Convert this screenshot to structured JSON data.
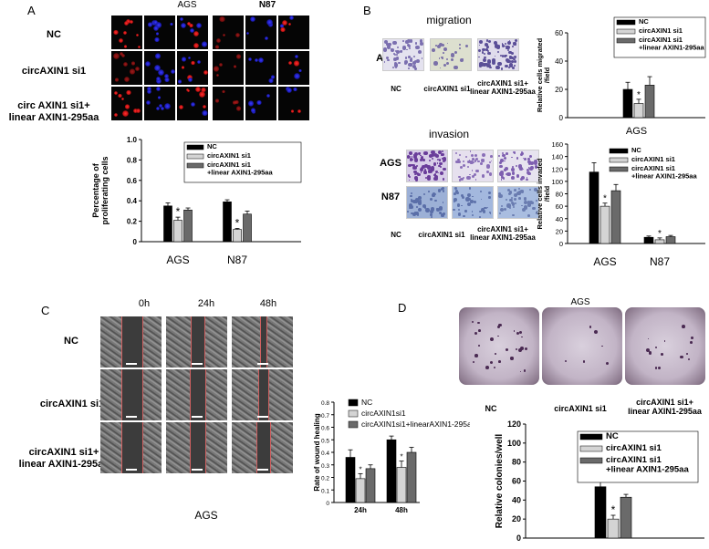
{
  "panelA": {
    "label": "A",
    "col_headers": [
      "AGS",
      "N87"
    ],
    "row_labels": [
      "NC",
      "circAXIN1 si1",
      "circ AXIN1 si1+\nlinear AXIN1-295aa"
    ]
  },
  "panelB": {
    "label": "B",
    "migration_title": "migration",
    "invasion_title": "invasion",
    "migration_rows": [
      "AGS"
    ],
    "invasion_rows": [
      "AGS",
      "N87"
    ],
    "col_labels": [
      "NC",
      "circAXIN1 si1",
      "circAXIN1 si1+\nlinear AXIN1-295aa"
    ]
  },
  "panelC": {
    "label": "C",
    "col_headers": [
      "0h",
      "24h",
      "48h"
    ],
    "row_labels": [
      "NC",
      "circAXIN1 si1",
      "circAXIN1 si1+\nlinear AXIN1-295aa"
    ],
    "footer": "AGS"
  },
  "panelD": {
    "label": "D",
    "header": "AGS",
    "col_labels": [
      "NC",
      "circAXIN1 si1",
      "circAXIN1 si1+\nlinear AXIN1-295aa"
    ]
  },
  "colors": {
    "NC": "#000000",
    "si1": "#d4d4d4",
    "rescue": "#6a6a6a"
  },
  "chart_data": [
    {
      "id": "prolif",
      "type": "bar",
      "ylabel": "Percentage of\nproliferating cells",
      "categories": [
        "AGS",
        "N87"
      ],
      "series": [
        {
          "name": "NC",
          "values": [
            0.35,
            0.39
          ],
          "err": [
            0.03,
            0.02
          ]
        },
        {
          "name": "circAXIN1 si1",
          "values": [
            0.21,
            0.12
          ],
          "err": [
            0.03,
            0.01
          ]
        },
        {
          "name": "circAXIN1 si1\n+linear AXIN1-295aa",
          "values": [
            0.31,
            0.27
          ],
          "err": [
            0.02,
            0.03
          ]
        }
      ],
      "ylim": [
        0,
        1.0
      ],
      "yticks": [
        "0",
        "0.2",
        "0.4",
        "0.6",
        "0.8",
        "1.0"
      ],
      "ytick_values": [
        0,
        0.2,
        0.4,
        0.6,
        0.8,
        1.0
      ],
      "sig": [
        "*",
        "*"
      ],
      "legend_position": "top-right"
    },
    {
      "id": "migr",
      "type": "bar",
      "ylabel": "Relative cells migrated\n/field",
      "xlabel": "AGS",
      "categories": [
        ""
      ],
      "series": [
        {
          "name": "NC",
          "values": [
            20
          ],
          "err": [
            5
          ]
        },
        {
          "name": "circAXIN1 si1",
          "values": [
            10
          ],
          "err": [
            3
          ]
        },
        {
          "name": "circAXIN1 si1\n+linear AXIN1-295aa",
          "values": [
            23
          ],
          "err": [
            6
          ]
        }
      ],
      "ylim": [
        0,
        60
      ],
      "yticks": [
        "0",
        "20",
        "40",
        "60"
      ],
      "ytick_values": [
        0,
        20,
        40,
        60
      ],
      "sig": [
        "*"
      ],
      "legend_position": "top-right"
    },
    {
      "id": "inv",
      "type": "bar",
      "ylabel": "Relative cells invaded\n/field",
      "categories": [
        "AGS",
        "N87"
      ],
      "series": [
        {
          "name": "NC",
          "values": [
            115,
            10
          ],
          "err": [
            15,
            2
          ]
        },
        {
          "name": "circAXIN1 si1",
          "values": [
            60,
            6
          ],
          "err": [
            5,
            3
          ]
        },
        {
          "name": "circAXIN1 si1\n+linear AXIN1-295aa",
          "values": [
            85,
            11
          ],
          "err": [
            10,
            2
          ]
        }
      ],
      "ylim": [
        0,
        160
      ],
      "yticks": [
        "0",
        "20",
        "40",
        "60",
        "80",
        "100",
        "120",
        "140",
        "160"
      ],
      "ytick_values": [
        0,
        20,
        40,
        60,
        80,
        100,
        120,
        140,
        160
      ],
      "sig": [
        "*",
        "*"
      ],
      "legend_position": "top-right"
    },
    {
      "id": "wound",
      "type": "bar",
      "ylabel": "Rate of wound healing",
      "categories": [
        "24h",
        "48h"
      ],
      "series": [
        {
          "name": "NC",
          "values": [
            0.36,
            0.5
          ],
          "err": [
            0.06,
            0.03
          ]
        },
        {
          "name": "circAXIN1si1",
          "values": [
            0.19,
            0.28
          ],
          "err": [
            0.04,
            0.05
          ]
        },
        {
          "name": "circAXIN1si1+linearAXIN1-295aa",
          "values": [
            0.27,
            0.4
          ],
          "err": [
            0.03,
            0.04
          ]
        }
      ],
      "ylim": [
        0,
        0.8
      ],
      "yticks": [
        "0",
        "0.1",
        "0.2",
        "0.3",
        "0.4",
        "0.5",
        "0.6",
        "0.7",
        "0.8"
      ],
      "ytick_values": [
        0,
        0.1,
        0.2,
        0.3,
        0.4,
        0.5,
        0.6,
        0.7,
        0.8
      ],
      "sig": [
        "*",
        "*"
      ],
      "legend_position": "top-right"
    },
    {
      "id": "col",
      "type": "bar",
      "ylabel": "Relative colonies/well",
      "categories": [
        ""
      ],
      "series": [
        {
          "name": "NC",
          "values": [
            54
          ],
          "err": [
            5
          ]
        },
        {
          "name": "circAXIN1 si1",
          "values": [
            20
          ],
          "err": [
            4
          ]
        },
        {
          "name": "circAXIN1 si1\n+linear AXIN1-295aa",
          "values": [
            43
          ],
          "err": [
            3
          ]
        }
      ],
      "ylim": [
        0,
        120
      ],
      "yticks": [
        "0",
        "20",
        "40",
        "60",
        "80",
        "100",
        "120"
      ],
      "ytick_values": [
        0,
        20,
        40,
        60,
        80,
        100,
        120
      ],
      "sig": [
        "*"
      ],
      "legend_position": "top-right"
    }
  ]
}
